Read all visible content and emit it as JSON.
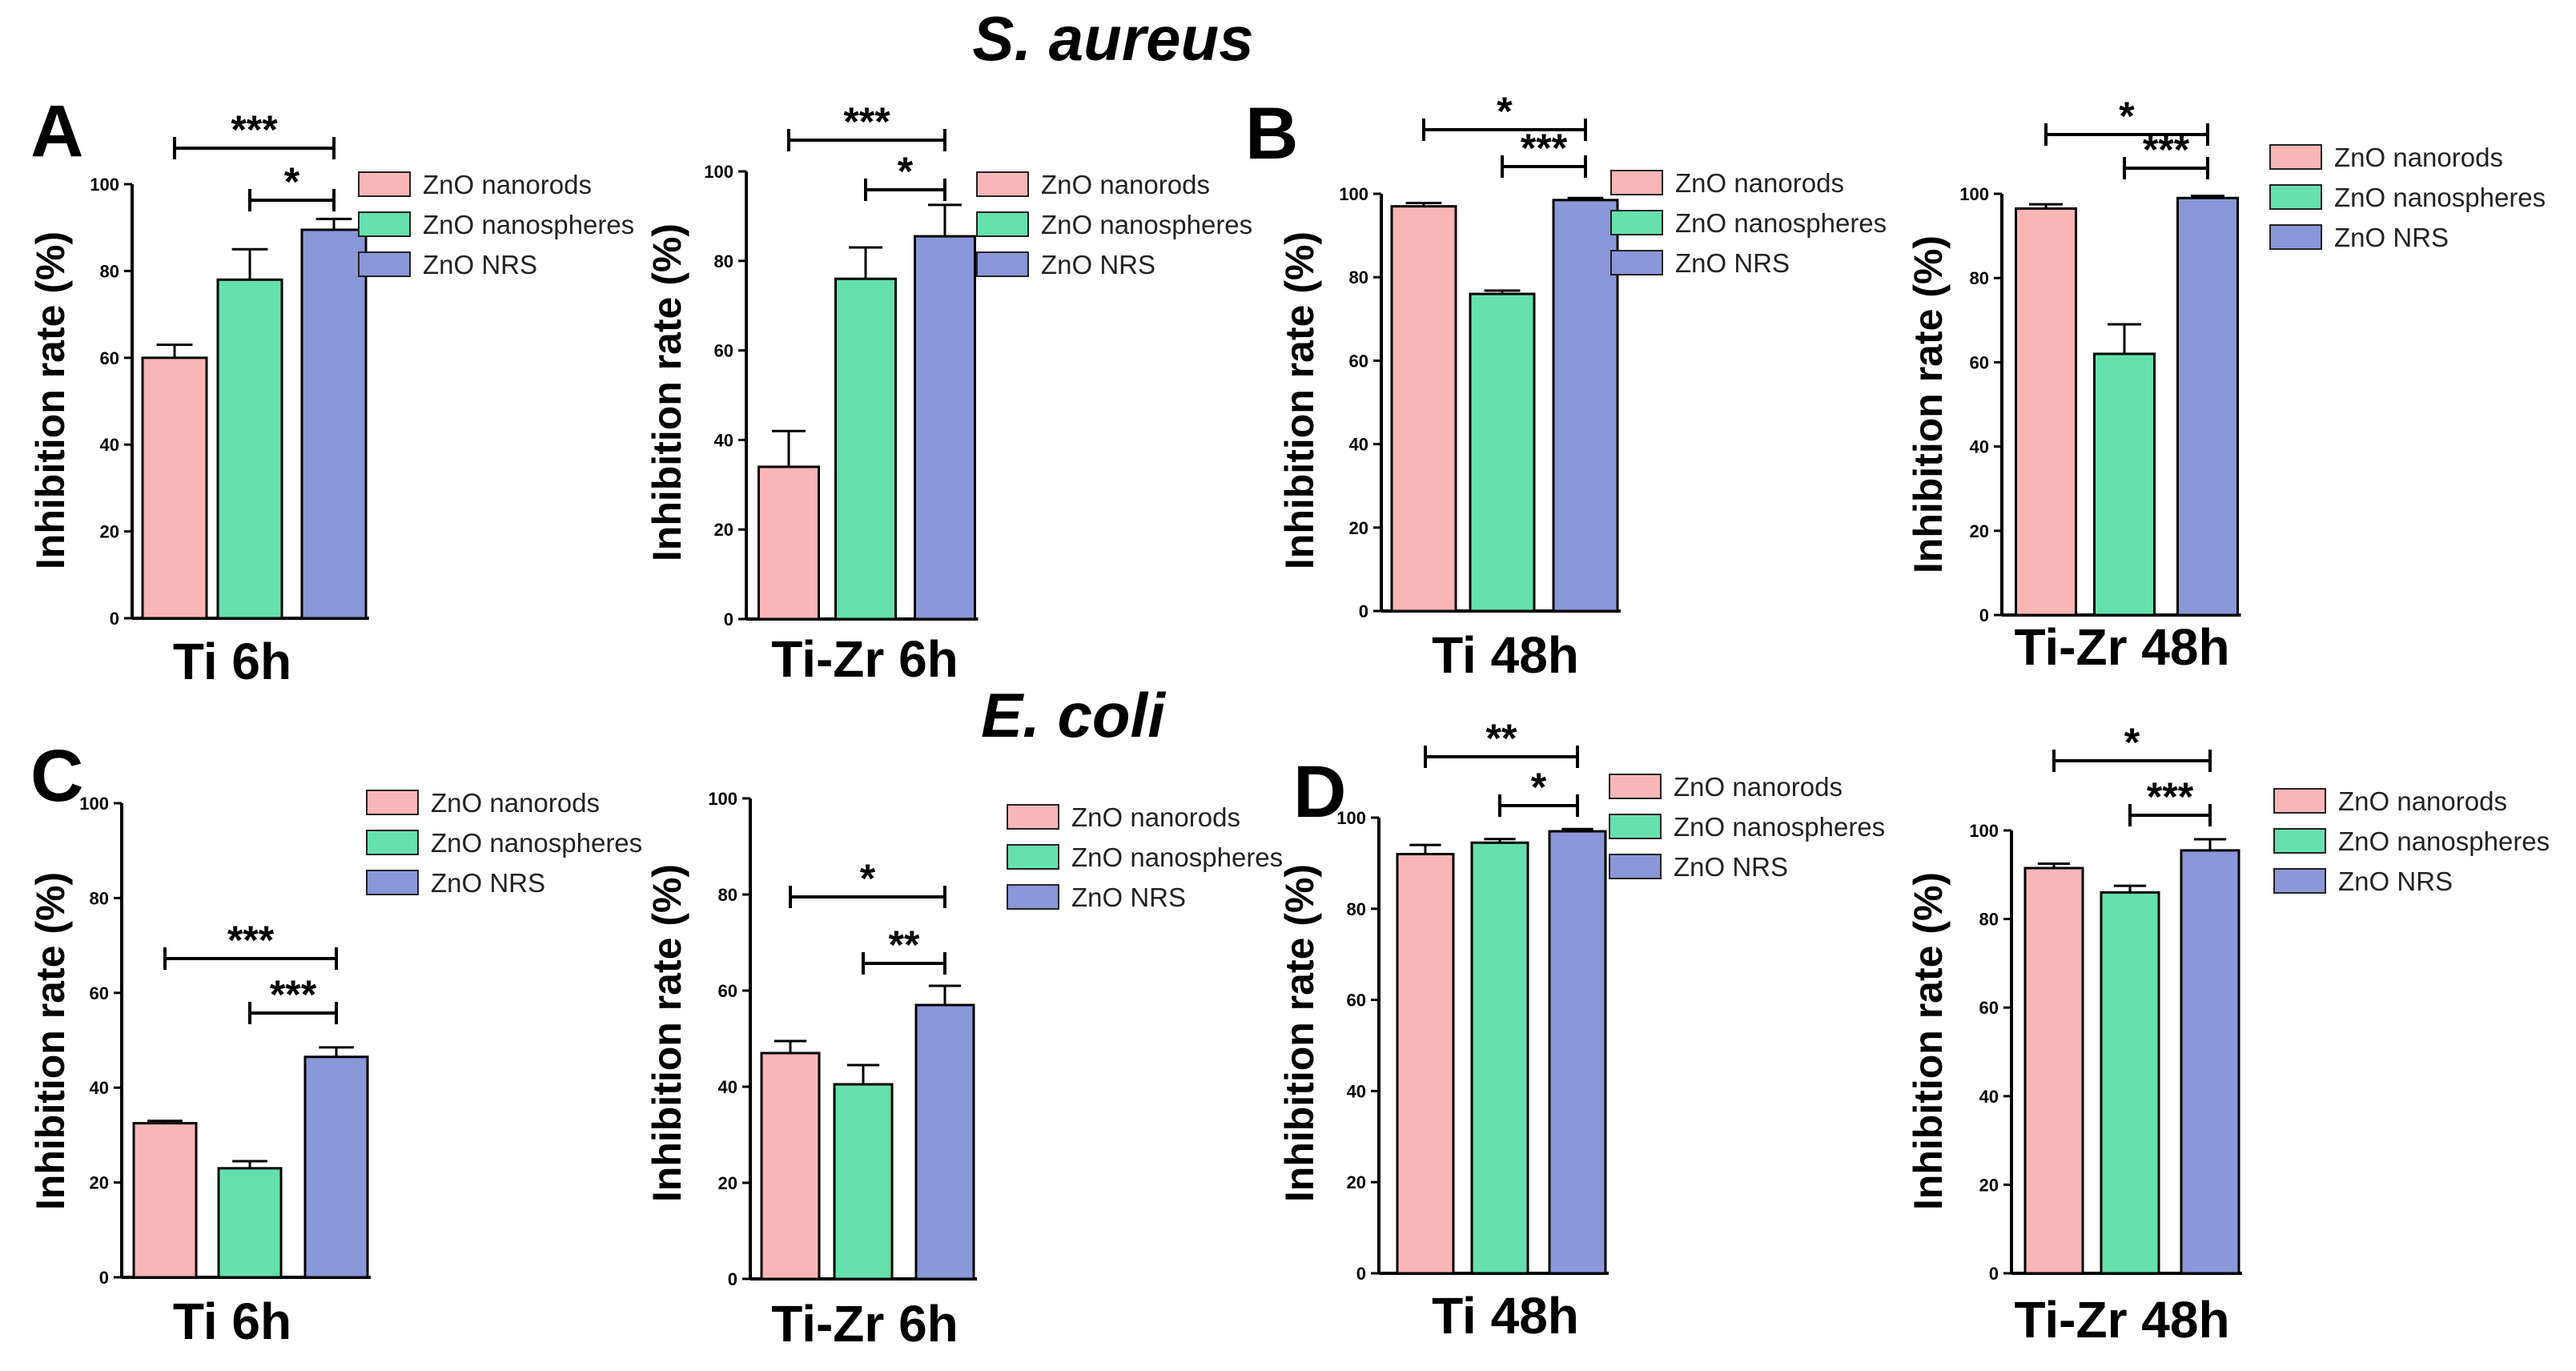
{
  "figure": {
    "title_top": "S. aureus",
    "title_mid": "E. coli",
    "letters": [
      "A",
      "B",
      "C",
      "D"
    ]
  },
  "colors": {
    "nanorods": "#F9B6B6",
    "nanospheres": "#66E0AC",
    "nrs": "#8A97D8"
  },
  "chart_data": [
    {
      "type": "bar",
      "panel": "A",
      "organism": "S. aureus",
      "xlabel": "Ti 6h",
      "ylabel": "Inhibition rate (%)",
      "ylim": [
        0,
        100
      ],
      "yticks": [
        0,
        20,
        40,
        60,
        80,
        100
      ],
      "categories": [
        "ZnO nanorods",
        "ZnO nanospheres",
        "ZnO NRS"
      ],
      "values": [
        60,
        78,
        89.5
      ],
      "errors": [
        3,
        7,
        2.5
      ],
      "significance": [
        {
          "from": 0,
          "to": 2,
          "label": "***"
        },
        {
          "from": 1,
          "to": 2,
          "label": "*"
        }
      ],
      "legend": [
        "ZnO nanorods",
        "ZnO nanospheres",
        "ZnO NRS"
      ]
    },
    {
      "type": "bar",
      "panel": "A",
      "organism": "S. aureus",
      "xlabel": "Ti-Zr 6h",
      "ylabel": "Inhibition rate (%)",
      "ylim": [
        0,
        100
      ],
      "yticks": [
        0,
        20,
        40,
        60,
        80,
        100
      ],
      "categories": [
        "ZnO nanorods",
        "ZnO nanospheres",
        "ZnO NRS"
      ],
      "values": [
        34,
        76,
        85.5
      ],
      "errors": [
        8,
        7,
        7
      ],
      "significance": [
        {
          "from": 0,
          "to": 2,
          "label": "***"
        },
        {
          "from": 1,
          "to": 2,
          "label": "*"
        }
      ],
      "legend": [
        "ZnO nanorods",
        "ZnO nanospheres",
        "ZnO NRS"
      ]
    },
    {
      "type": "bar",
      "panel": "B",
      "organism": "S. aureus",
      "xlabel": "Ti 48h",
      "ylabel": "Inhibition rate (%)",
      "ylim": [
        0,
        100
      ],
      "yticks": [
        0,
        20,
        40,
        60,
        80,
        100
      ],
      "categories": [
        "ZnO nanorods",
        "ZnO nanospheres",
        "ZnO NRS"
      ],
      "values": [
        97,
        76,
        98.5
      ],
      "errors": [
        0.8,
        0.8,
        0.5
      ],
      "significance": [
        {
          "from": 0,
          "to": 2,
          "label": "*"
        },
        {
          "from": 1,
          "to": 2,
          "label": "***"
        }
      ],
      "legend": [
        "ZnO nanorods",
        "ZnO nanospheres",
        "ZnO NRS"
      ]
    },
    {
      "type": "bar",
      "panel": "B",
      "organism": "S. aureus",
      "xlabel": "Ti-Zr 48h",
      "ylabel": "Inhibition rate (%)",
      "ylim": [
        0,
        100
      ],
      "yticks": [
        0,
        20,
        40,
        60,
        80,
        100
      ],
      "categories": [
        "ZnO nanorods",
        "ZnO nanospheres",
        "ZnO NRS"
      ],
      "values": [
        96.5,
        62,
        99
      ],
      "errors": [
        1,
        7,
        0.5
      ],
      "significance": [
        {
          "from": 0,
          "to": 2,
          "label": "*"
        },
        {
          "from": 1,
          "to": 2,
          "label": "***"
        }
      ],
      "legend": [
        "ZnO nanorods",
        "ZnO nanospheres",
        "ZnO NRS"
      ]
    },
    {
      "type": "bar",
      "panel": "C",
      "organism": "E. coli",
      "xlabel": "Ti 6h",
      "ylabel": "Inhibition rate (%)",
      "ylim": [
        0,
        100
      ],
      "yticks": [
        0,
        20,
        40,
        60,
        80,
        100
      ],
      "categories": [
        "ZnO nanorods",
        "ZnO nanospheres",
        "ZnO NRS"
      ],
      "values": [
        32.5,
        23,
        46.5
      ],
      "errors": [
        0.5,
        1.5,
        2
      ],
      "significance": [
        {
          "from": 0,
          "to": 2,
          "label": "***"
        },
        {
          "from": 1,
          "to": 2,
          "label": "***"
        }
      ],
      "legend": [
        "ZnO nanorods",
        "ZnO nanospheres",
        "ZnO NRS"
      ]
    },
    {
      "type": "bar",
      "panel": "C",
      "organism": "E. coli",
      "xlabel": "Ti-Zr 6h",
      "ylabel": "Inhibition rate (%)",
      "ylim": [
        0,
        100
      ],
      "yticks": [
        0,
        20,
        40,
        60,
        80,
        100
      ],
      "categories": [
        "ZnO nanorods",
        "ZnO nanospheres",
        "ZnO NRS"
      ],
      "values": [
        47,
        40.5,
        57
      ],
      "errors": [
        2.5,
        4,
        4
      ],
      "significance": [
        {
          "from": 0,
          "to": 2,
          "label": "*"
        },
        {
          "from": 1,
          "to": 2,
          "label": "**"
        }
      ],
      "legend": [
        "ZnO nanorods",
        "ZnO nanospheres",
        "ZnO NRS"
      ]
    },
    {
      "type": "bar",
      "panel": "D",
      "organism": "E. coli",
      "xlabel": "Ti 48h",
      "ylabel": "Inhibition rate (%)",
      "ylim": [
        0,
        100
      ],
      "yticks": [
        0,
        20,
        40,
        60,
        80,
        100
      ],
      "categories": [
        "ZnO nanorods",
        "ZnO nanospheres",
        "ZnO NRS"
      ],
      "values": [
        92,
        94.5,
        97
      ],
      "errors": [
        2,
        0.8,
        0.5
      ],
      "significance": [
        {
          "from": 0,
          "to": 2,
          "label": "**"
        },
        {
          "from": 1,
          "to": 2,
          "label": "*"
        }
      ],
      "legend": [
        "ZnO nanorods",
        "ZnO nanospheres",
        "ZnO NRS"
      ]
    },
    {
      "type": "bar",
      "panel": "D",
      "organism": "E. coli",
      "xlabel": "Ti-Zr 48h",
      "ylabel": "Inhibition rate (%)",
      "ylim": [
        0,
        100
      ],
      "yticks": [
        0,
        20,
        40,
        60,
        80,
        100
      ],
      "categories": [
        "ZnO nanorods",
        "ZnO nanospheres",
        "ZnO NRS"
      ],
      "values": [
        91.5,
        86,
        95.5
      ],
      "errors": [
        1,
        1.5,
        2.5
      ],
      "significance": [
        {
          "from": 0,
          "to": 2,
          "label": "*"
        },
        {
          "from": 1,
          "to": 2,
          "label": "***"
        }
      ],
      "legend": [
        "ZnO nanorods",
        "ZnO nanospheres",
        "ZnO NRS"
      ]
    }
  ]
}
